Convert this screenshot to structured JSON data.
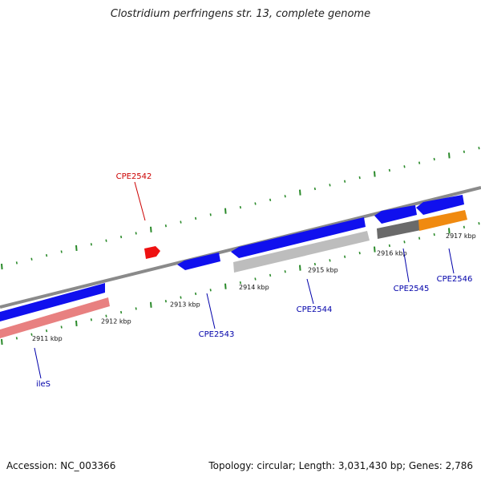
{
  "title": "Clostridium perfringens str. 13, complete genome",
  "footer": {
    "accession": "Accession: NC_003366",
    "summary": "Topology: circular; Length: 3,031,430 bp; Genes: 2,786"
  },
  "colors": {
    "backbone": "#8a8a8a",
    "tick": "#2a8a2a",
    "gene_blue": "#1010ee",
    "gene_red": "#ee1111",
    "rrna_pink": "#e88080",
    "grey_light": "#bdbdbd",
    "grey_dark": "#6a6a6a",
    "orange": "#f08a10",
    "label_blue": "#0000aa",
    "label_red": "#cc0000"
  },
  "tick_labels": [
    {
      "label": "2911 kbp",
      "pos": 2911
    },
    {
      "label": "2912 kbp",
      "pos": 2912
    },
    {
      "label": "2913 kbp",
      "pos": 2913
    },
    {
      "label": "2914 kbp",
      "pos": 2914
    },
    {
      "label": "2915 kbp",
      "pos": 2915
    },
    {
      "label": "2916 kbp",
      "pos": 2916
    },
    {
      "label": "2917 kbp",
      "pos": 2917
    }
  ],
  "genes": [
    {
      "name": "ileS",
      "label_color": "label_blue"
    },
    {
      "name": "CPE2542",
      "label_color": "label_red"
    },
    {
      "name": "CPE2543",
      "label_color": "label_blue"
    },
    {
      "name": "CPE2544",
      "label_color": "label_blue"
    },
    {
      "name": "CPE2545",
      "label_color": "label_blue"
    },
    {
      "name": "CPE2546",
      "label_color": "label_blue"
    }
  ]
}
